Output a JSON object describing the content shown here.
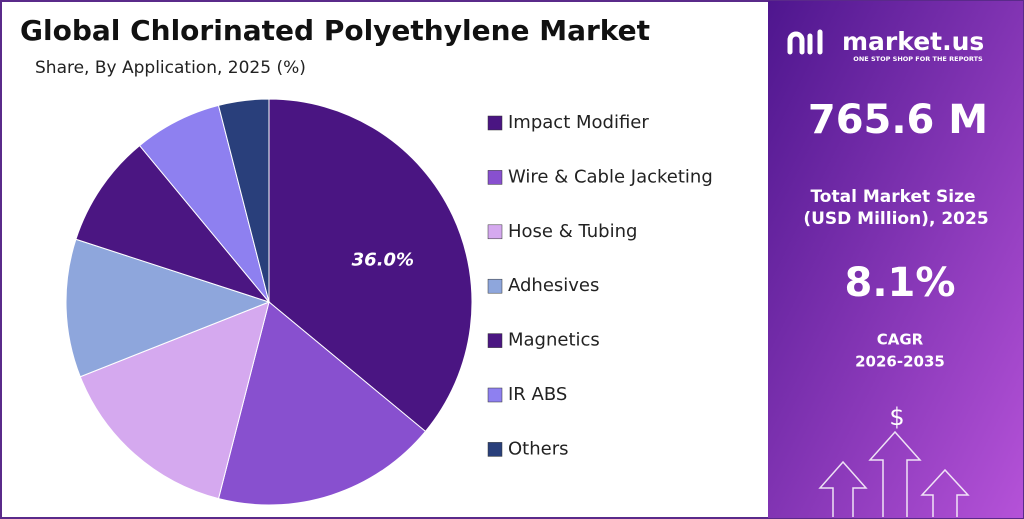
{
  "chart_data": {
    "type": "pie",
    "title": "Global Chlorinated Polyethylene Market",
    "subtitle": "Share, By Application, 2025 (%)",
    "categories": [
      "Impact Modifier",
      "Wire & Cable Jacketing",
      "Hose & Tubing",
      "Adhesives",
      "Magnetics",
      "IR ABS",
      "Others"
    ],
    "values": [
      36,
      18,
      15,
      11,
      9,
      7,
      4
    ],
    "value_labels": [
      "36.0%",
      null,
      null,
      null,
      null,
      null,
      null
    ],
    "colors": [
      "#4a1582",
      "#8850cf",
      "#d5a9ef",
      "#8ea6dc",
      "#4b1682",
      "#8e80f0",
      "#293f7b"
    ],
    "legend": "right"
  },
  "panel": {
    "brand": "market.us",
    "tagline": "ONE STOP SHOP FOR THE REPORTS",
    "market_size": "765.6 M",
    "market_size_label": [
      "Total Market Size",
      "(USD Million), 2025"
    ],
    "cagr": "8.1%",
    "cagr_label": [
      "CAGR",
      "2026-2035"
    ],
    "icon_symbol": "$"
  }
}
